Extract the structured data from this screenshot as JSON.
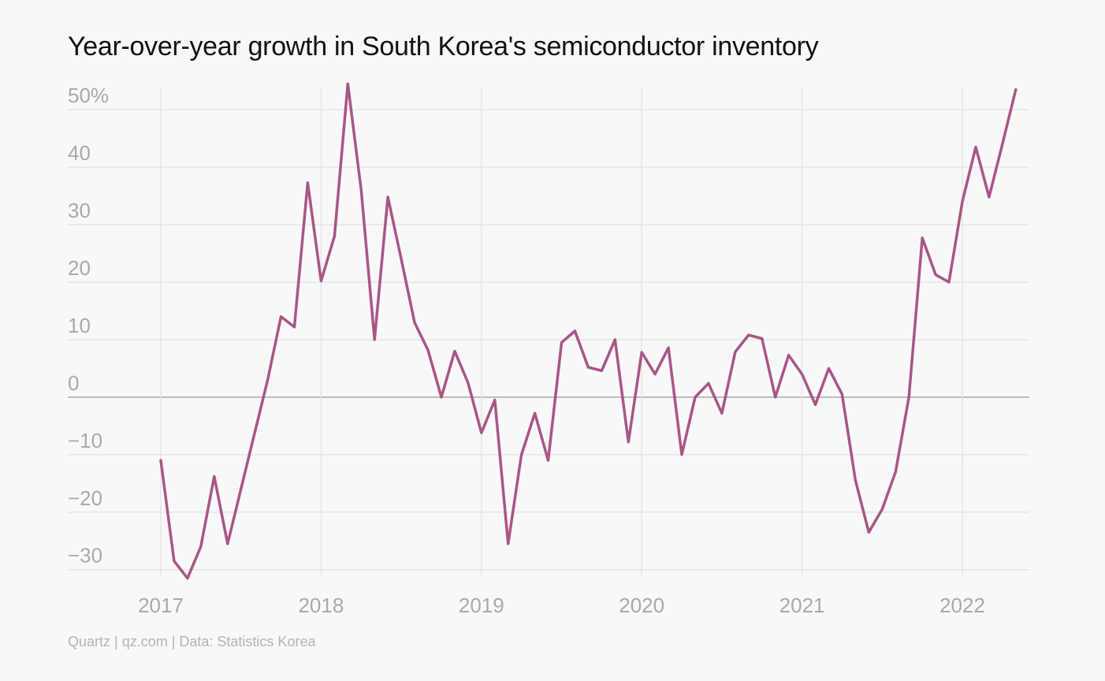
{
  "chart_data": {
    "type": "line",
    "title": "Year-over-year growth in South Korea's semiconductor inventory",
    "xlabel": "",
    "ylabel": "",
    "y_unit_suffix": "%",
    "x_tick_labels": [
      "2017",
      "2018",
      "2019",
      "2020",
      "2021",
      "2022"
    ],
    "y_ticks": [
      50,
      40,
      30,
      20,
      10,
      0,
      -10,
      -20,
      -30
    ],
    "y_tick_labels": [
      "50%",
      "40",
      "30",
      "20",
      "10",
      "0",
      "−10",
      "−20",
      "−30"
    ],
    "ylim": [
      -31,
      54
    ],
    "xlim": [
      "2017-01",
      "2022-05"
    ],
    "grid": true,
    "series": [
      {
        "color": "#a85686",
        "x": [
          "2017-01",
          "2017-02",
          "2017-03",
          "2017-04",
          "2017-05",
          "2017-06",
          "2017-07",
          "2017-08",
          "2017-09",
          "2017-10",
          "2017-11",
          "2017-12",
          "2018-01",
          "2018-02",
          "2018-03",
          "2018-04",
          "2018-05",
          "2018-06",
          "2018-07",
          "2018-08",
          "2018-09",
          "2018-10",
          "2018-11",
          "2018-12",
          "2019-01",
          "2019-02",
          "2019-03",
          "2019-04",
          "2019-05",
          "2019-06",
          "2019-07",
          "2019-08",
          "2019-09",
          "2019-10",
          "2019-11",
          "2019-12",
          "2020-01",
          "2020-02",
          "2020-03",
          "2020-04",
          "2020-05",
          "2020-06",
          "2020-07",
          "2020-08",
          "2020-09",
          "2020-10",
          "2020-11",
          "2020-12",
          "2021-01",
          "2021-02",
          "2021-03",
          "2021-04",
          "2021-05",
          "2021-06",
          "2021-07",
          "2021-08",
          "2021-09",
          "2021-10",
          "2021-11",
          "2021-12",
          "2022-01",
          "2022-02",
          "2022-03",
          "2022-04",
          "2022-05"
        ],
        "values": [
          -11,
          -28.5,
          -31.5,
          -26,
          -13.8,
          -25.5,
          -16,
          -6.5,
          3,
          14,
          12.2,
          37.3,
          20.2,
          28,
          54.5,
          36,
          10,
          34.8,
          24,
          13,
          8.2,
          0,
          8,
          2.5,
          -6.2,
          -0.5,
          -25.5,
          -10,
          -2.8,
          -11,
          9.5,
          11.5,
          5.2,
          4.6,
          10,
          -7.8,
          7.8,
          4,
          8.6,
          -10,
          0,
          2.4,
          -2.8,
          7.9,
          10.8,
          10.2,
          0,
          7.3,
          4,
          -1.3,
          5,
          0.5,
          -14.5,
          -23.5,
          -19.5,
          -13,
          0,
          27.7,
          21.3,
          20,
          34,
          43.5,
          34.8,
          44,
          53.5
        ]
      }
    ]
  },
  "footer": {
    "source_text": "Quartz | qz.com | Data: Statistics Korea"
  }
}
